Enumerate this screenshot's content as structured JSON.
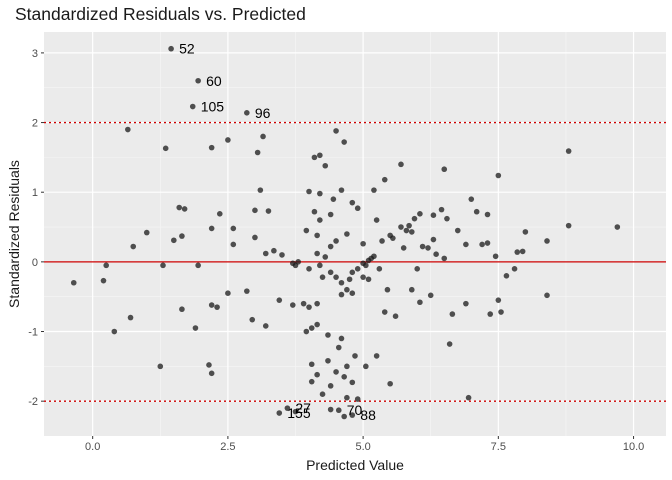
{
  "chart_data": {
    "type": "scatter",
    "title": "Standardized Residuals vs. Predicted",
    "xlabel": "Predicted Value",
    "ylabel": "Standardized Residuals",
    "xlim": [
      -0.9,
      10.6
    ],
    "ylim": [
      -2.5,
      3.3
    ],
    "xticks": [
      0,
      2.5,
      5,
      7.5,
      10
    ],
    "xtick_labels": [
      "0.0",
      "2.5",
      "5.0",
      "7.5",
      "10.0"
    ],
    "yticks": [
      -2,
      -1,
      0,
      1,
      2,
      3
    ],
    "ytick_labels": [
      "-2",
      "-1",
      "0",
      "1",
      "2",
      "3"
    ],
    "grid": true,
    "reference_lines": [
      {
        "y": 0,
        "style": "solid",
        "color": "#cc0000"
      },
      {
        "y": 2,
        "style": "dotted",
        "color": "#cc0000"
      },
      {
        "y": -2,
        "style": "dotted",
        "color": "#cc0000"
      }
    ],
    "points": [
      [
        1.45,
        3.06
      ],
      [
        1.95,
        2.6
      ],
      [
        1.85,
        2.23
      ],
      [
        2.85,
        2.14
      ],
      [
        0.65,
        1.9
      ],
      [
        1.35,
        1.63
      ],
      [
        3.15,
        1.8
      ],
      [
        3.05,
        1.57
      ],
      [
        2.2,
        1.64
      ],
      [
        2.5,
        1.75
      ],
      [
        4.5,
        1.88
      ],
      [
        4.65,
        1.72
      ],
      [
        4.2,
        1.53
      ],
      [
        4.1,
        1.5
      ],
      [
        4.3,
        1.38
      ],
      [
        5.7,
        1.4
      ],
      [
        6.5,
        1.33
      ],
      [
        7.5,
        1.24
      ],
      [
        8.8,
        1.59
      ],
      [
        5.4,
        1.18
      ],
      [
        5.2,
        1.03
      ],
      [
        4.0,
        1.01
      ],
      [
        4.2,
        0.98
      ],
      [
        4.6,
        1.03
      ],
      [
        4.8,
        0.85
      ],
      [
        4.45,
        0.9
      ],
      [
        4.9,
        0.77
      ],
      [
        3.1,
        1.03
      ],
      [
        1.6,
        0.78
      ],
      [
        1.7,
        0.76
      ],
      [
        2.35,
        0.69
      ],
      [
        2.6,
        0.48
      ],
      [
        3.0,
        0.74
      ],
      [
        3.25,
        0.73
      ],
      [
        4.1,
        0.72
      ],
      [
        4.2,
        0.6
      ],
      [
        4.4,
        0.68
      ],
      [
        3.95,
        0.45
      ],
      [
        2.2,
        0.48
      ],
      [
        1.0,
        0.42
      ],
      [
        0.75,
        0.22
      ],
      [
        1.5,
        0.31
      ],
      [
        1.65,
        0.37
      ],
      [
        2.6,
        0.25
      ],
      [
        3.0,
        0.35
      ],
      [
        3.2,
        0.12
      ],
      [
        3.35,
        0.16
      ],
      [
        3.5,
        0.1
      ],
      [
        4.15,
        0.38
      ],
      [
        4.4,
        0.22
      ],
      [
        4.15,
        0.12
      ],
      [
        4.3,
        0.07
      ],
      [
        4.5,
        0.3
      ],
      [
        4.7,
        0.4
      ],
      [
        5.0,
        0.26
      ],
      [
        5.25,
        0.6
      ],
      [
        5.35,
        0.3
      ],
      [
        5.5,
        0.38
      ],
      [
        5.55,
        0.34
      ],
      [
        5.75,
        0.2
      ],
      [
        5.8,
        0.45
      ],
      [
        5.85,
        0.52
      ],
      [
        5.95,
        0.62
      ],
      [
        6.05,
        0.69
      ],
      [
        6.1,
        0.22
      ],
      [
        6.3,
        0.67
      ],
      [
        6.3,
        0.32
      ],
      [
        6.45,
        0.75
      ],
      [
        6.55,
        0.62
      ],
      [
        6.35,
        0.11
      ],
      [
        6.5,
        0.05
      ],
      [
        6.75,
        0.45
      ],
      [
        7.0,
        0.9
      ],
      [
        7.1,
        0.72
      ],
      [
        7.3,
        0.68
      ],
      [
        7.2,
        0.25
      ],
      [
        7.3,
        0.27
      ],
      [
        7.45,
        0.08
      ],
      [
        7.8,
        -0.1
      ],
      [
        7.95,
        0.15
      ],
      [
        8.0,
        0.43
      ],
      [
        8.4,
        0.3
      ],
      [
        8.8,
        0.52
      ],
      [
        9.7,
        0.5
      ],
      [
        6.9,
        0.25
      ],
      [
        7.85,
        0.14
      ],
      [
        5.7,
        0.5
      ],
      [
        5.9,
        0.43
      ],
      [
        6.2,
        0.2
      ],
      [
        5.0,
        -0.02
      ],
      [
        5.1,
        0.02
      ],
      [
        5.15,
        0.05
      ],
      [
        5.2,
        0.08
      ],
      [
        5.05,
        -0.05
      ],
      [
        5.3,
        -0.1
      ],
      [
        5.0,
        -0.22
      ],
      [
        4.9,
        -0.1
      ],
      [
        4.8,
        -0.15
      ],
      [
        4.75,
        -0.25
      ],
      [
        4.6,
        -0.3
      ],
      [
        4.5,
        -0.22
      ],
      [
        4.4,
        -0.15
      ],
      [
        4.2,
        -0.05
      ],
      [
        4.0,
        -0.1
      ],
      [
        3.75,
        -0.05
      ],
      [
        3.8,
        0.0
      ],
      [
        3.7,
        -0.02
      ],
      [
        4.7,
        -0.4
      ],
      [
        4.8,
        -0.45
      ],
      [
        4.6,
        -0.47
      ],
      [
        4.25,
        -0.22
      ],
      [
        4.15,
        -0.6
      ],
      [
        4.0,
        -0.65
      ],
      [
        3.9,
        -0.6
      ],
      [
        3.7,
        -0.62
      ],
      [
        3.45,
        -0.55
      ],
      [
        2.85,
        -0.42
      ],
      [
        2.5,
        -0.45
      ],
      [
        2.2,
        -0.62
      ],
      [
        1.9,
        -0.95
      ],
      [
        1.65,
        -0.68
      ],
      [
        0.7,
        -0.8
      ],
      [
        0.4,
        -1.0
      ],
      [
        -0.35,
        -0.3
      ],
      [
        0.2,
        -0.27
      ],
      [
        0.25,
        -0.05
      ],
      [
        1.3,
        -0.05
      ],
      [
        1.95,
        -0.05
      ],
      [
        2.3,
        -0.65
      ],
      [
        2.95,
        -0.83
      ],
      [
        3.2,
        -0.92
      ],
      [
        3.95,
        -1.0
      ],
      [
        4.05,
        -0.95
      ],
      [
        4.15,
        -0.9
      ],
      [
        4.35,
        -1.05
      ],
      [
        4.6,
        -1.1
      ],
      [
        4.55,
        -1.23
      ],
      [
        4.35,
        -1.42
      ],
      [
        4.05,
        -1.47
      ],
      [
        4.15,
        -1.62
      ],
      [
        4.5,
        -1.58
      ],
      [
        4.7,
        -1.5
      ],
      [
        4.85,
        -1.35
      ],
      [
        5.05,
        -1.5
      ],
      [
        5.5,
        -1.75
      ],
      [
        5.25,
        -1.35
      ],
      [
        4.65,
        -1.65
      ],
      [
        4.8,
        -1.73
      ],
      [
        4.05,
        -1.72
      ],
      [
        4.25,
        -1.9
      ],
      [
        4.7,
        -1.95
      ],
      [
        4.9,
        -1.97
      ],
      [
        4.4,
        -1.78
      ],
      [
        1.25,
        -1.5
      ],
      [
        2.15,
        -1.48
      ],
      [
        2.2,
        -1.6
      ],
      [
        5.4,
        -0.72
      ],
      [
        5.6,
        -0.78
      ],
      [
        5.9,
        -0.4
      ],
      [
        6.05,
        -0.58
      ],
      [
        6.25,
        -0.48
      ],
      [
        6.65,
        -0.75
      ],
      [
        6.6,
        -1.18
      ],
      [
        6.95,
        -1.95
      ],
      [
        6.9,
        -0.6
      ],
      [
        7.35,
        -0.75
      ],
      [
        7.5,
        -0.55
      ],
      [
        7.55,
        -0.72
      ],
      [
        8.4,
        -0.48
      ],
      [
        7.65,
        -0.2
      ],
      [
        5.1,
        -0.25
      ],
      [
        5.45,
        -0.4
      ],
      [
        6.0,
        -0.1
      ],
      [
        3.6,
        -2.1
      ],
      [
        3.75,
        -2.15
      ],
      [
        3.45,
        -2.17
      ],
      [
        4.4,
        -2.12
      ],
      [
        4.65,
        -2.22
      ],
      [
        4.8,
        -2.2
      ],
      [
        4.55,
        -2.13
      ]
    ],
    "labeled_points": [
      {
        "label": "52",
        "x": 1.45,
        "y": 3.06
      },
      {
        "label": "60",
        "x": 1.95,
        "y": 2.6
      },
      {
        "label": "105",
        "x": 1.85,
        "y": 2.23
      },
      {
        "label": "96",
        "x": 2.85,
        "y": 2.14
      },
      {
        "label": "27",
        "x": 3.6,
        "y": -2.1
      },
      {
        "label": "155",
        "x": 3.45,
        "y": -2.17
      },
      {
        "label": "70",
        "x": 4.55,
        "y": -2.13
      },
      {
        "label": "88",
        "x": 4.8,
        "y": -2.2
      }
    ],
    "colors": {
      "panel_bg": "#ebebeb",
      "grid_major": "#ffffff",
      "point": "#1a1a1a",
      "reference": "#cc0000"
    }
  }
}
